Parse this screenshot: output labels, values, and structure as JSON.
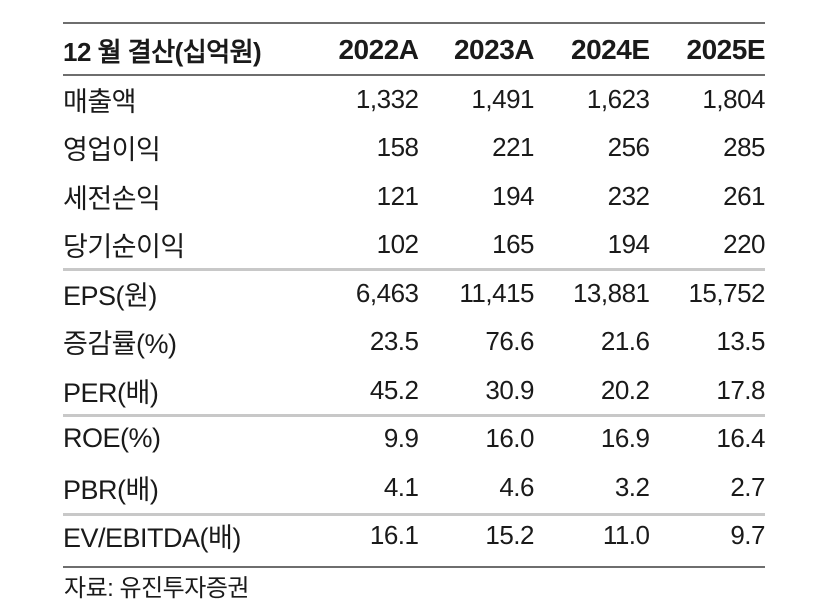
{
  "header": {
    "label": "12 월 결산(십억원)",
    "cols": [
      "2022A",
      "2023A",
      "2024E",
      "2025E"
    ]
  },
  "rows": [
    {
      "label": "매출액",
      "values": [
        "1,332",
        "1,491",
        "1,623",
        "1,804"
      ]
    },
    {
      "label": "영업이익",
      "values": [
        "158",
        "221",
        "256",
        "285"
      ]
    },
    {
      "label": "세전손익",
      "values": [
        "121",
        "194",
        "232",
        "261"
      ]
    },
    {
      "label": "당기순이익",
      "values": [
        "102",
        "165",
        "194",
        "220"
      ]
    },
    {
      "label": "EPS(원)",
      "values": [
        "6,463",
        "11,415",
        "13,881",
        "15,752"
      ]
    },
    {
      "label": "증감률(%)",
      "values": [
        "23.5",
        "76.6",
        "21.6",
        "13.5"
      ]
    },
    {
      "label": "PER(배)",
      "values": [
        "45.2",
        "30.9",
        "20.2",
        "17.8"
      ]
    },
    {
      "label": "ROE(%)",
      "values": [
        "9.9",
        "16.0",
        "16.9",
        "16.4"
      ]
    },
    {
      "label": "PBR(배)",
      "values": [
        "4.1",
        "4.6",
        "3.2",
        "2.7"
      ]
    },
    {
      "label": "EV/EBITDA(배)",
      "values": [
        "16.1",
        "15.2",
        "11.0",
        "9.7"
      ]
    }
  ],
  "source": "자료: 유진투자증권"
}
